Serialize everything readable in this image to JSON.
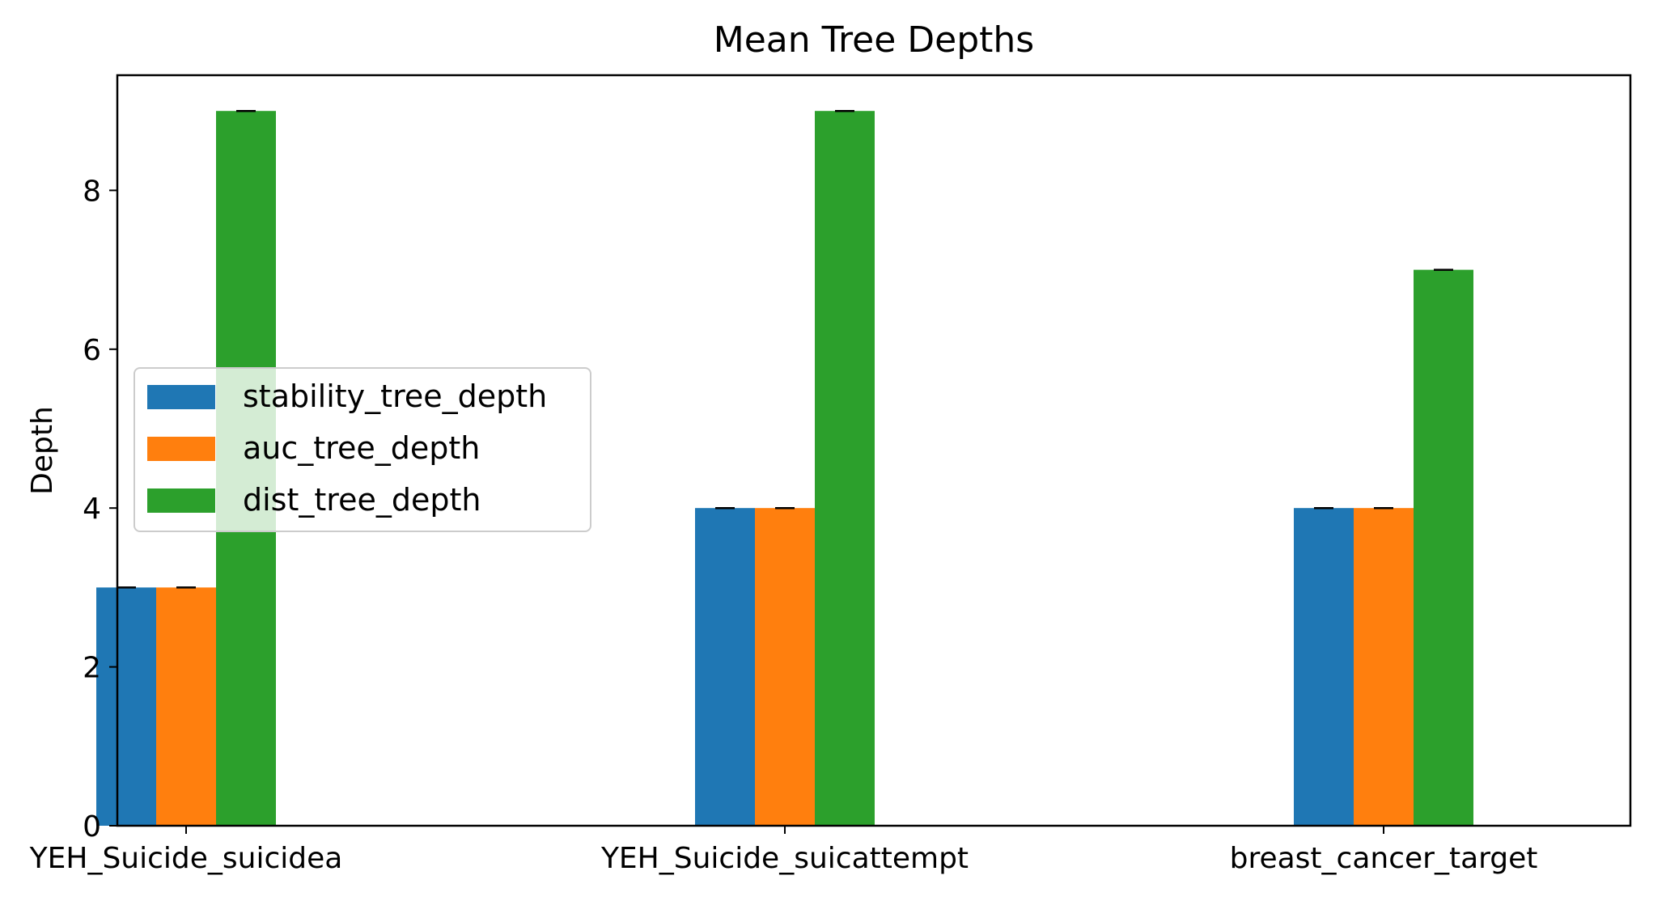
{
  "chart_data": {
    "type": "bar",
    "title": "Mean Tree Depths",
    "xlabel": "",
    "ylabel": "Depth",
    "categories": [
      "YEH_Suicide_suicidea",
      "YEH_Suicide_suicattempt",
      "breast_cancer_target"
    ],
    "series": [
      {
        "name": "stability_tree_depth",
        "values": [
          3,
          4,
          4
        ],
        "color": "#1f77b4"
      },
      {
        "name": "auc_tree_depth",
        "values": [
          3,
          4,
          4
        ],
        "color": "#ff7f0e"
      },
      {
        "name": "dist_tree_depth",
        "values": [
          9,
          9,
          7
        ],
        "color": "#2ca02c"
      }
    ],
    "error": [
      [
        0,
        0,
        0
      ],
      [
        0,
        0,
        0
      ],
      [
        0,
        0,
        0
      ]
    ],
    "ylim": [
      0,
      9.45
    ],
    "yticks": [
      0,
      2,
      4,
      6,
      8
    ],
    "legend_position": "center-left",
    "grid": false
  }
}
